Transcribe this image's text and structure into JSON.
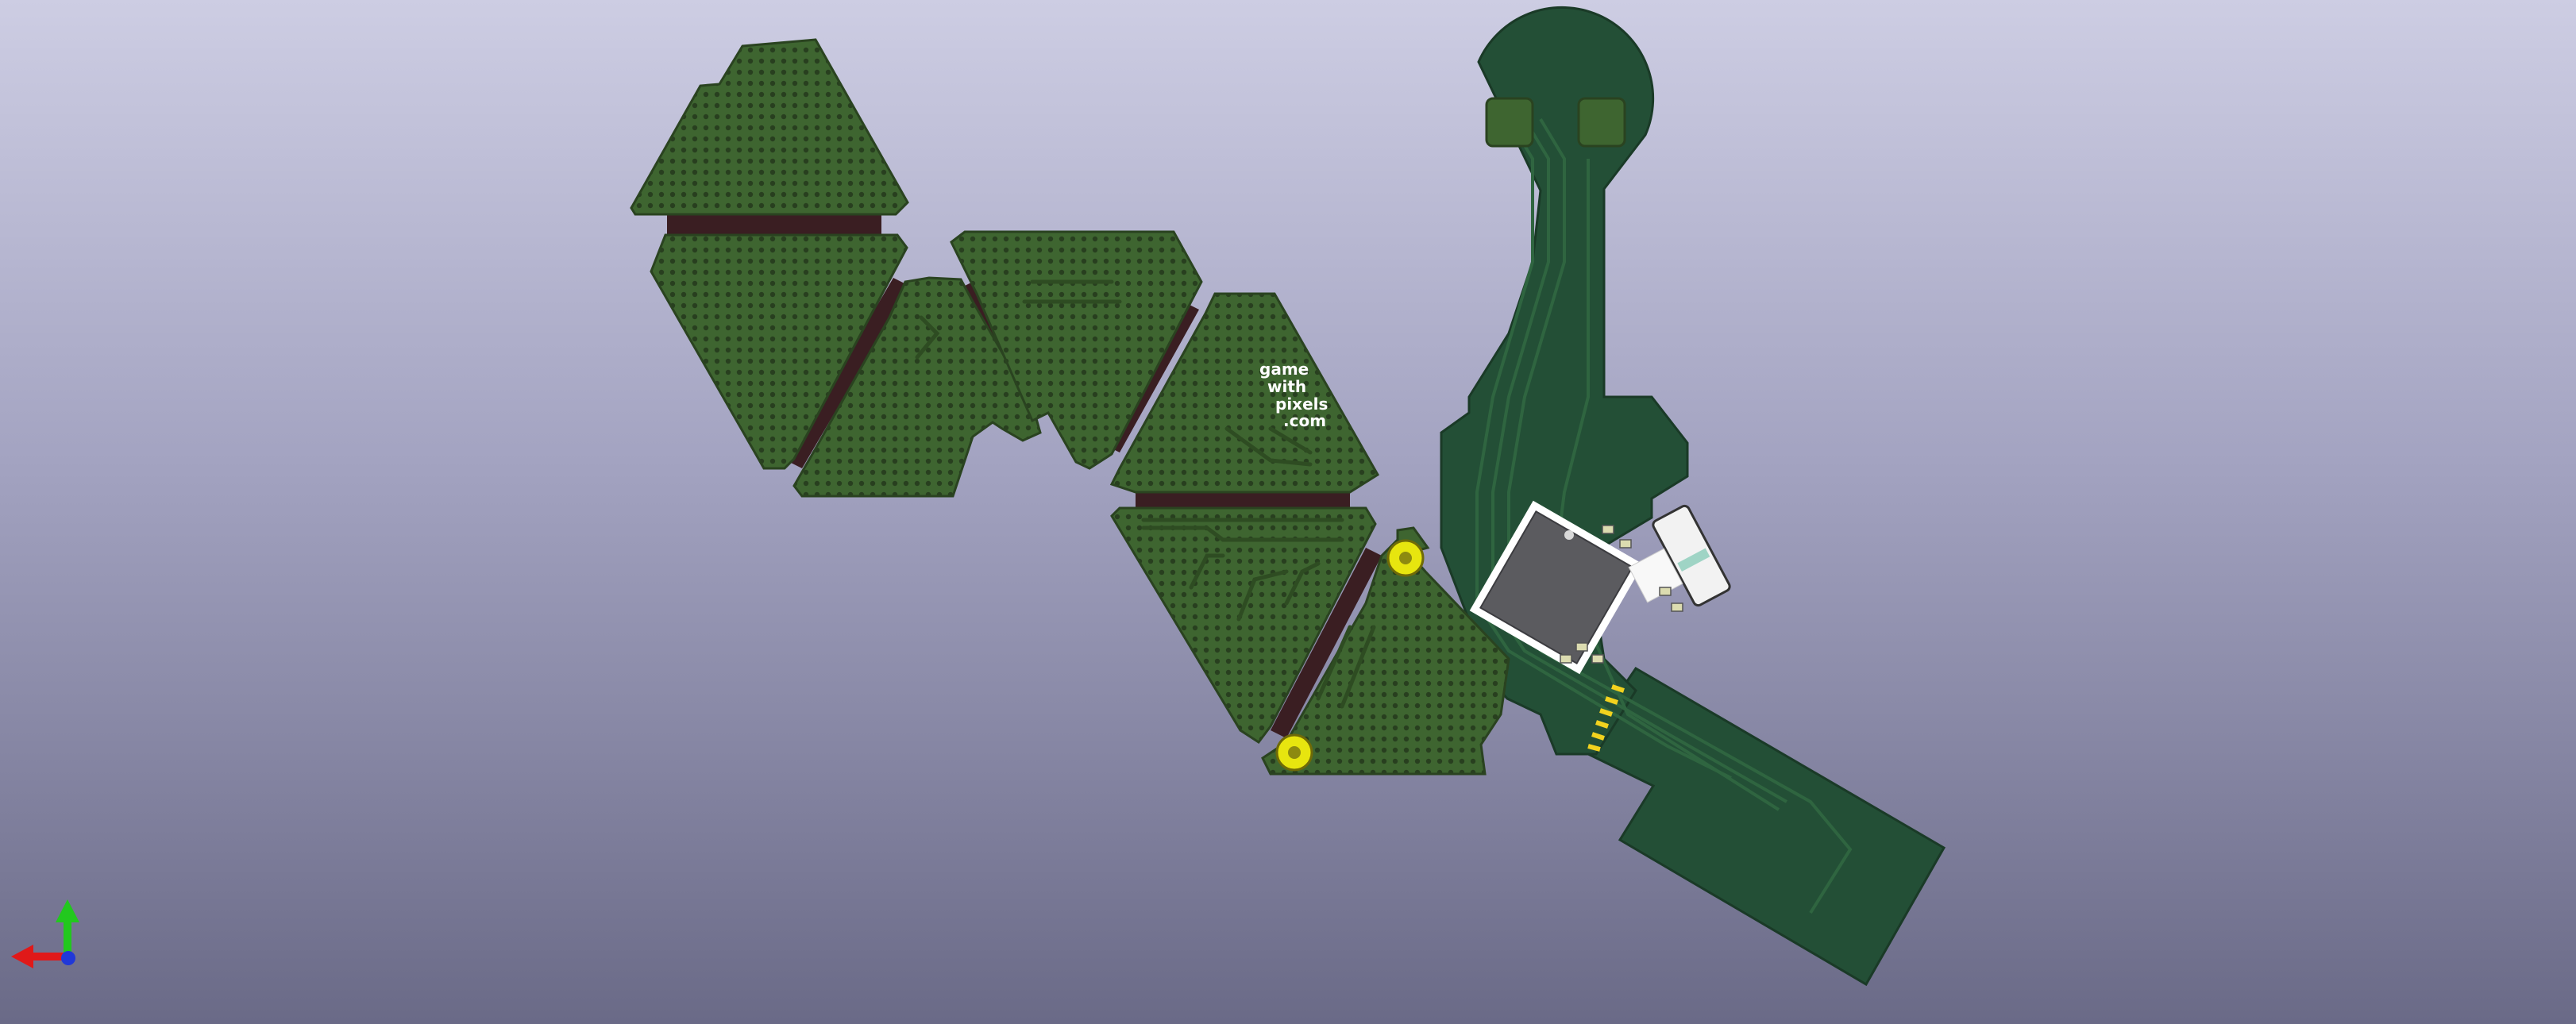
{
  "viewer": {
    "background_top": "#cdcde3",
    "background_bottom": "#6a6a87"
  },
  "board": {
    "silkscreen_lines": [
      "game",
      "with",
      "pixels",
      ".com"
    ],
    "soldermask_color": "#3b5e2b",
    "flex_color": "#234f36",
    "substrate_gap_color": "#3a1e22"
  },
  "axes_gizmo": {
    "x_color": "#e01919",
    "y_color": "#22c81e",
    "z_color": "#2038d8",
    "icons": [
      "x-axis-arrow-icon",
      "y-axis-arrow-icon",
      "z-axis-dot-icon"
    ]
  }
}
